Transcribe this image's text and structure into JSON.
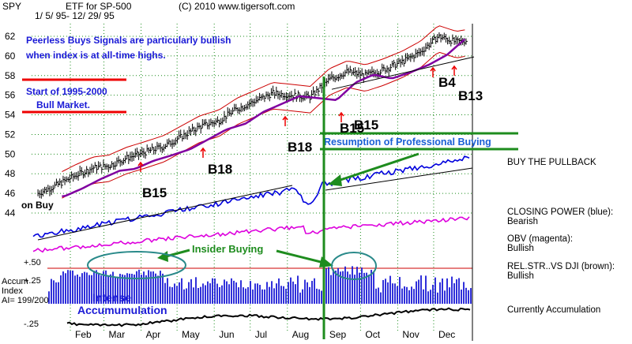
{
  "header": {
    "ticker": "SPY",
    "name": "ETF for SP-500",
    "copyright": "(C) 2010 www.tigersoft.com",
    "date_range": "1/ 5/ 95- 12/ 29/ 95"
  },
  "annotations": {
    "peerless_line1": "Peerless Buys Signals are particularly bullish",
    "peerless_line2": "when index is at all-time highs.",
    "start_line1": "Start of 1995-2000",
    "start_line2": "Bull Market.",
    "resumption": "Resumption of Professional Buying",
    "insider": "Insider Buying",
    "intense1": "Intense",
    "intense2": "Accumumulation",
    "on_buy": "on Buy"
  },
  "signals": [
    {
      "label": "B15",
      "date": "1995-03-01"
    },
    {
      "label": "B18",
      "date": "1995-05-20"
    },
    {
      "label": "B18",
      "date": "1995-07-28"
    },
    {
      "label": "B15",
      "date": "1995-08-26"
    },
    {
      "label": "B4",
      "date": "1995-11-20"
    },
    {
      "label": "B13",
      "date": "1995-12-05"
    }
  ],
  "signals_extra": {
    "overlap": "B15"
  },
  "side_labels": {
    "buy_pullback": "BUY THE PULLBACK",
    "closing_power_title": "CLOSING POWER (blue):",
    "closing_power_value": "Bearish",
    "obv_title": "OBV (magenta):",
    "obv_value": "Bullish",
    "relstr_title": "REL.STR..VS DJI (brown):",
    "relstr_value": "Bullish",
    "currently": "Currently Accumulation"
  },
  "accum": {
    "label1": "Accum",
    "label2": "Index",
    "label3": "AI= 199/200",
    "tick_hi": "+.50",
    "tick_mid": "+.25",
    "tick_lo": "-.25"
  },
  "colors": {
    "price": "#000000",
    "band": "#cc0000",
    "moving_avg": "#8000a0",
    "closing_power": "#0000dd",
    "obv": "#dd00dd",
    "annotation_blue": "#1a1ad6",
    "annotation_red": "#ee0000",
    "annotation_green": "#1e8c1e",
    "teal": "#2a8a8a",
    "accum_bars": "#1a1ad6"
  },
  "chart_data": {
    "type": "line",
    "title": "SPY ETF for SP-500",
    "xlabel": "",
    "ylabel": "",
    "x_ticks": [
      "Feb",
      "Mar",
      "Apr",
      "May",
      "Jun",
      "Jul",
      "Aug",
      "Sep",
      "Oct",
      "Nov",
      "Dec"
    ],
    "y_ticks": [
      44,
      46,
      48,
      50,
      52,
      54,
      56,
      58,
      60,
      62
    ],
    "ylim": [
      43,
      63
    ],
    "grid": true,
    "series": [
      {
        "name": "",
        "dates": [
          "1995-01-05",
          "1995-01-20",
          "1995-02-05",
          "1995-02-20",
          "1995-03-05",
          "1995-03-20",
          "1995-04-05",
          "1995-04-20",
          "1995-05-05",
          "1995-05-20",
          "1995-06-05",
          "1995-06-20",
          "1995-07-05",
          "1995-07-20",
          "1995-08-05",
          "1995-08-20",
          "1995-09-05",
          "1995-09-20",
          "1995-10-05",
          "1995-10-20",
          "1995-11-05",
          "1995-11-20",
          "1995-12-05",
          "1995-12-20",
          "1995-12-29"
        ],
        "values": [
          46.0,
          46.8,
          47.8,
          48.6,
          48.8,
          49.6,
          50.2,
          50.8,
          51.8,
          52.8,
          53.4,
          54.6,
          55.4,
          56.2,
          56.0,
          55.8,
          57.6,
          58.4,
          58.0,
          58.6,
          59.4,
          60.4,
          62.0,
          61.4,
          61.6
        ]
      }
    ]
  }
}
